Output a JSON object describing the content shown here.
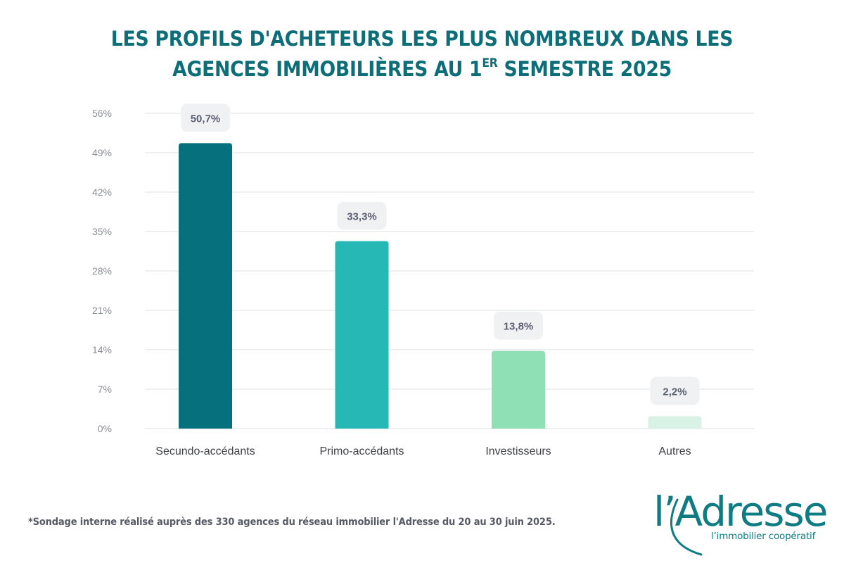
{
  "title": {
    "line1": "LES PROFILS D'ACHETEURS LES PLUS NOMBREUX DANS LES",
    "line2_pre": "AGENCES IMMOBILIÈRES AU 1",
    "line2_sup": "ER",
    "line2_post": " SEMESTRE 2025"
  },
  "colors": {
    "title": "#0e6e78",
    "grid": "#e9eaec",
    "axis_text": "#8a8d93",
    "label_text": "#5c5f73",
    "label_box": "#f0f1f2",
    "category_text": "#3f4046"
  },
  "chart_data": {
    "type": "bar",
    "title": "LES PROFILS D'ACHETEURS LES PLUS NOMBREUX DANS LES AGENCES IMMOBILIÈRES AU 1ER SEMESTRE 2025",
    "xlabel": "",
    "ylabel": "",
    "categories": [
      "Secundo-accédants",
      "Primo-accédants",
      "Investisseurs",
      "Autres"
    ],
    "values": [
      50.7,
      33.3,
      13.8,
      2.2
    ],
    "data_labels": [
      "50,7%",
      "33,3%",
      "13,8%",
      "2,2%"
    ],
    "bar_colors": [
      "#06707c",
      "#25b8b5",
      "#8fe0b4",
      "#d9f2e6"
    ],
    "ylim": [
      0,
      56
    ],
    "yticks": [
      0,
      7,
      14,
      21,
      28,
      35,
      42,
      49,
      56
    ],
    "ytick_labels": [
      "0%",
      "7%",
      "14%",
      "21%",
      "28%",
      "35%",
      "42%",
      "49%",
      "56%"
    ],
    "grid": true,
    "legend": "none"
  },
  "footnote": "*Sondage interne réalisé auprès des 330 agences du réseau immobilier l'Adresse du 20 au 30 juin 2025.",
  "logo": {
    "name": "l’Adresse",
    "tagline": "l’immobilier coopératif"
  }
}
